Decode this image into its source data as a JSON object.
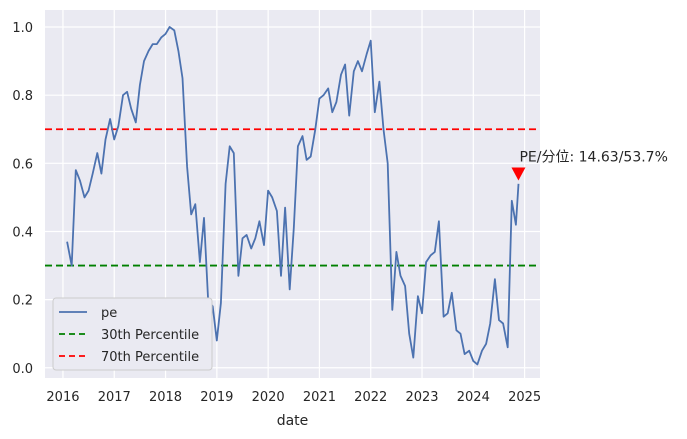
{
  "chart_data": {
    "type": "line",
    "xlabel": "date",
    "ylabel": "",
    "xlim": [
      2015.65,
      2025.3
    ],
    "ylim": [
      -0.03,
      1.05
    ],
    "grid": true,
    "legend_placement": "lower-left",
    "x_ticks": [
      2016,
      2017,
      2018,
      2019,
      2020,
      2021,
      2022,
      2023,
      2024,
      2025
    ],
    "x_tick_labels": [
      "2016",
      "2017",
      "2018",
      "2019",
      "2020",
      "2021",
      "2022",
      "2023",
      "2024",
      "2025"
    ],
    "y_ticks": [
      0.0,
      0.2,
      0.4,
      0.6,
      0.8,
      1.0
    ],
    "y_tick_labels": [
      "0.0",
      "0.2",
      "0.4",
      "0.6",
      "0.8",
      "1.0"
    ],
    "series": [
      {
        "name": "pe",
        "color": "#4c72b0",
        "x": [
          2016.08,
          2016.17,
          2016.25,
          2016.33,
          2016.42,
          2016.5,
          2016.58,
          2016.67,
          2016.75,
          2016.83,
          2016.92,
          2017.0,
          2017.08,
          2017.17,
          2017.25,
          2017.33,
          2017.42,
          2017.5,
          2017.58,
          2017.67,
          2017.75,
          2017.83,
          2017.92,
          2018.0,
          2018.08,
          2018.17,
          2018.25,
          2018.33,
          2018.42,
          2018.5,
          2018.58,
          2018.67,
          2018.75,
          2018.83,
          2018.92,
          2019.0,
          2019.08,
          2019.17,
          2019.25,
          2019.33,
          2019.42,
          2019.5,
          2019.58,
          2019.67,
          2019.75,
          2019.83,
          2019.92,
          2020.0,
          2020.08,
          2020.17,
          2020.25,
          2020.33,
          2020.42,
          2020.5,
          2020.58,
          2020.67,
          2020.75,
          2020.83,
          2020.92,
          2021.0,
          2021.08,
          2021.17,
          2021.25,
          2021.33,
          2021.42,
          2021.5,
          2021.58,
          2021.67,
          2021.75,
          2021.83,
          2021.92,
          2022.0,
          2022.08,
          2022.17,
          2022.25,
          2022.33,
          2022.42,
          2022.5,
          2022.58,
          2022.67,
          2022.75,
          2022.83,
          2022.92,
          2023.0,
          2023.08,
          2023.17,
          2023.25,
          2023.33,
          2023.42,
          2023.5,
          2023.58,
          2023.67,
          2023.75,
          2023.83,
          2023.92,
          2024.0,
          2024.08,
          2024.17,
          2024.25,
          2024.33,
          2024.42,
          2024.5,
          2024.58,
          2024.67,
          2024.75,
          2024.83,
          2024.88
        ],
        "values": [
          0.37,
          0.3,
          0.58,
          0.55,
          0.5,
          0.52,
          0.57,
          0.63,
          0.57,
          0.67,
          0.73,
          0.67,
          0.71,
          0.8,
          0.81,
          0.76,
          0.72,
          0.83,
          0.9,
          0.93,
          0.95,
          0.95,
          0.97,
          0.98,
          1.0,
          0.99,
          0.93,
          0.85,
          0.59,
          0.45,
          0.48,
          0.31,
          0.44,
          0.2,
          0.18,
          0.08,
          0.19,
          0.54,
          0.65,
          0.63,
          0.27,
          0.38,
          0.39,
          0.35,
          0.38,
          0.43,
          0.36,
          0.52,
          0.5,
          0.46,
          0.27,
          0.47,
          0.23,
          0.41,
          0.65,
          0.68,
          0.61,
          0.62,
          0.7,
          0.79,
          0.8,
          0.82,
          0.75,
          0.78,
          0.86,
          0.89,
          0.74,
          0.87,
          0.9,
          0.87,
          0.92,
          0.96,
          0.75,
          0.84,
          0.7,
          0.6,
          0.17,
          0.34,
          0.27,
          0.24,
          0.1,
          0.03,
          0.21,
          0.16,
          0.31,
          0.33,
          0.34,
          0.43,
          0.15,
          0.16,
          0.22,
          0.11,
          0.1,
          0.04,
          0.05,
          0.02,
          0.01,
          0.05,
          0.07,
          0.13,
          0.26,
          0.14,
          0.13,
          0.06,
          0.49,
          0.42,
          0.54
        ]
      },
      {
        "name": "30th Percentile",
        "color": "#008000",
        "style": "dashed",
        "constant": 0.3
      },
      {
        "name": "70th Percentile",
        "color": "#ff0000",
        "style": "dashed",
        "constant": 0.7
      }
    ],
    "annotation": {
      "text": "PE/分位: 14.63/53.7%",
      "x": 2024.88,
      "y": 0.57,
      "marker": "down-triangle",
      "marker_color": "#ff0000"
    }
  }
}
